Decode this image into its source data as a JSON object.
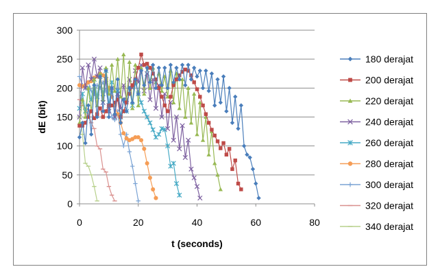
{
  "chart_data": {
    "type": "line",
    "xlabel": "t (seconds)",
    "ylabel": "dE (bit)",
    "xlim": [
      0,
      80
    ],
    "ylim": [
      0,
      300
    ],
    "xticks": [
      0,
      20,
      40,
      60,
      80
    ],
    "yticks": [
      0,
      50,
      100,
      150,
      200,
      250,
      300
    ],
    "grid": "horizontal",
    "legend_position": "right",
    "series": [
      {
        "name": "180 derajat",
        "color": "#4a7ebb",
        "marker": "diamond",
        "x": [
          0,
          1,
          2,
          3,
          4,
          5,
          6,
          7,
          8,
          9,
          10,
          11,
          12,
          13,
          14,
          15,
          16,
          17,
          18,
          19,
          20,
          21,
          22,
          23,
          24,
          25,
          26,
          27,
          28,
          29,
          30,
          31,
          32,
          33,
          34,
          35,
          36,
          37,
          38,
          39,
          40,
          41,
          42,
          43,
          44,
          45,
          46,
          47,
          48,
          49,
          50,
          51,
          52,
          53,
          54,
          55,
          56,
          57,
          58,
          59,
          60,
          61
        ],
        "y": [
          115,
          140,
          105,
          170,
          120,
          205,
          150,
          220,
          160,
          230,
          150,
          200,
          155,
          215,
          140,
          180,
          160,
          200,
          175,
          215,
          190,
          230,
          205,
          235,
          210,
          240,
          200,
          235,
          205,
          235,
          200,
          240,
          210,
          235,
          215,
          240,
          205,
          240,
          215,
          235,
          220,
          230,
          200,
          230,
          195,
          225,
          170,
          215,
          175,
          220,
          160,
          200,
          140,
          185,
          130,
          170,
          100,
          85,
          80,
          60,
          35,
          10
        ]
      },
      {
        "name": "200 derajat",
        "color": "#be4b48",
        "marker": "square",
        "x": [
          0,
          1,
          2,
          3,
          4,
          5,
          6,
          7,
          8,
          9,
          10,
          11,
          12,
          13,
          14,
          15,
          16,
          17,
          18,
          19,
          20,
          21,
          22,
          23,
          24,
          25,
          26,
          27,
          28,
          29,
          30,
          31,
          32,
          33,
          34,
          35,
          36,
          37,
          38,
          39,
          40,
          41,
          42,
          43,
          44,
          45,
          46,
          47,
          48,
          49,
          50,
          51,
          52,
          53,
          54,
          55
        ],
        "y": [
          135,
          135,
          140,
          150,
          160,
          148,
          155,
          165,
          150,
          160,
          170,
          170,
          175,
          180,
          150,
          160,
          175,
          190,
          205,
          215,
          235,
          258,
          240,
          242,
          235,
          225,
          215,
          200,
          185,
          170,
          160,
          185,
          205,
          215,
          222,
          228,
          232,
          230,
          222,
          210,
          198,
          185,
          170,
          155,
          140,
          128,
          118,
          108,
          96,
          105,
          85,
          95,
          60,
          75,
          35,
          25
        ]
      },
      {
        "name": "220 derajat",
        "color": "#98b954",
        "marker": "triangle",
        "x": [
          0,
          1,
          2,
          3,
          4,
          5,
          6,
          7,
          8,
          9,
          10,
          11,
          12,
          13,
          14,
          15,
          16,
          17,
          18,
          19,
          20,
          21,
          22,
          23,
          24,
          25,
          26,
          27,
          28,
          29,
          30,
          31,
          32,
          33,
          34,
          35,
          36,
          37,
          38,
          39,
          40,
          41,
          42,
          43,
          44,
          45,
          46,
          47,
          48
        ],
        "y": [
          140,
          180,
          150,
          200,
          160,
          215,
          170,
          225,
          180,
          235,
          190,
          240,
          195,
          250,
          185,
          258,
          175,
          245,
          165,
          240,
          170,
          235,
          190,
          242,
          200,
          235,
          210,
          225,
          195,
          220,
          185,
          230,
          175,
          225,
          165,
          215,
          150,
          200,
          140,
          190,
          120,
          175,
          110,
          150,
          85,
          125,
          70,
          50,
          25
        ]
      },
      {
        "name": "240 derajat",
        "color": "#7d60a0",
        "marker": "x",
        "x": [
          0,
          1,
          2,
          3,
          4,
          5,
          6,
          7,
          8,
          9,
          10,
          11,
          12,
          13,
          14,
          15,
          16,
          17,
          18,
          19,
          20,
          21,
          22,
          23,
          24,
          25,
          26,
          27,
          28,
          29,
          30,
          31,
          32,
          33,
          34,
          35,
          36,
          37,
          38,
          39,
          40,
          41
        ],
        "y": [
          150,
          235,
          200,
          240,
          215,
          250,
          220,
          235,
          175,
          215,
          160,
          200,
          150,
          190,
          165,
          205,
          180,
          215,
          200,
          230,
          210,
          240,
          195,
          225,
          180,
          215,
          165,
          205,
          150,
          190,
          130,
          175,
          110,
          150,
          95,
          135,
          80,
          110,
          60,
          45,
          30,
          10
        ]
      },
      {
        "name": "260 derajat",
        "color": "#46aac5",
        "marker": "asterisk",
        "x": [
          0,
          1,
          2,
          3,
          4,
          5,
          6,
          7,
          8,
          9,
          10,
          11,
          12,
          13,
          14,
          15,
          16,
          17,
          18,
          19,
          20,
          21,
          22,
          23,
          24,
          25,
          26,
          27,
          28,
          29,
          30,
          31,
          32,
          33,
          34
        ],
        "y": [
          165,
          190,
          160,
          200,
          180,
          215,
          185,
          220,
          190,
          230,
          170,
          210,
          150,
          195,
          150,
          180,
          160,
          200,
          170,
          210,
          190,
          175,
          160,
          150,
          140,
          128,
          115,
          120,
          130,
          128,
          100,
          65,
          70,
          35,
          15
        ]
      },
      {
        "name": "280 derajat",
        "color": "#f59d56",
        "marker": "circle",
        "x": [
          0,
          1,
          2,
          3,
          4,
          5,
          6,
          7,
          8,
          9,
          10,
          11,
          12,
          13,
          14,
          15,
          16,
          17,
          18,
          19,
          20,
          21,
          22,
          23,
          24,
          25,
          26
        ],
        "y": [
          205,
          203,
          205,
          210,
          212,
          218,
          220,
          225,
          222,
          215,
          200,
          185,
          170,
          155,
          140,
          122,
          113,
          110,
          112,
          115,
          115,
          110,
          95,
          70,
          45,
          25,
          10
        ]
      },
      {
        "name": "300 derajat",
        "color": "#7aa3d4",
        "marker": "plus",
        "x": [
          0,
          1,
          2,
          3,
          4,
          5,
          6,
          7,
          8,
          9,
          10,
          11,
          12,
          13,
          14,
          15,
          16,
          17,
          18,
          19,
          20
        ],
        "y": [
          220,
          205,
          200,
          210,
          195,
          190,
          205,
          200,
          210,
          195,
          170,
          150,
          145,
          160,
          120,
          100,
          120,
          90,
          65,
          35,
          5
        ]
      },
      {
        "name": "320 derajat",
        "color": "#d9908e",
        "marker": "dash",
        "x": [
          0,
          1,
          2,
          3,
          4,
          5,
          6,
          7,
          8,
          9,
          10,
          11,
          12
        ],
        "y": [
          180,
          170,
          165,
          155,
          140,
          130,
          100,
          95,
          60,
          55,
          30,
          15,
          5
        ]
      },
      {
        "name": "340 derajat",
        "color": "#b7d08b",
        "marker": "dash",
        "x": [
          0,
          1,
          2,
          3,
          4,
          5,
          6
        ],
        "y": [
          150,
          120,
          70,
          65,
          50,
          30,
          5
        ]
      }
    ]
  }
}
